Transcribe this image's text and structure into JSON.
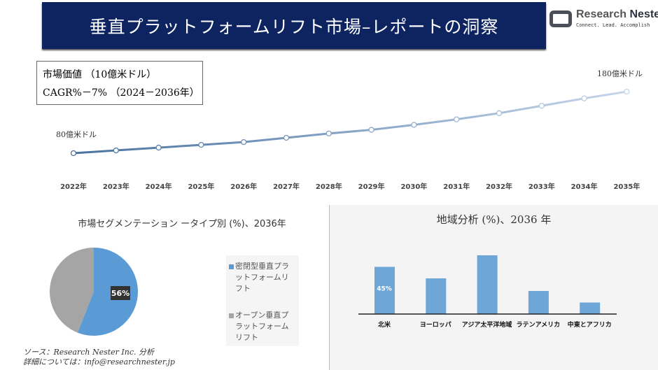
{
  "header": {
    "title": "垂直プラットフォームリフト市場–レポートの洞察"
  },
  "logo": {
    "name_light": "Research",
    "name_bold": "Nester",
    "tagline": "Connect. Lead. Accomplish"
  },
  "info_box": {
    "line1": "市場価値 （10億米ドル）",
    "line2": "CAGR%－7% （2024－2036年）"
  },
  "colors": {
    "banner": "#0d2461",
    "line_start": "#4a72a0",
    "line_end": "#c5d6ea",
    "pie_blue": "#5b9bd5",
    "pie_gray": "#a5a5a5",
    "bar": "#6fa6d8"
  },
  "chart_data": [
    {
      "type": "line",
      "categories": [
        "2022年",
        "2023年",
        "2024年",
        "2025年",
        "2026年",
        "2027年",
        "2028年",
        "2029年",
        "2030年",
        "2031年",
        "2032年",
        "2033年",
        "2034年",
        "2035年"
      ],
      "values": [
        8.0,
        8.45,
        8.9,
        9.35,
        9.8,
        10.5,
        11.2,
        11.8,
        12.6,
        13.5,
        14.5,
        15.7,
        16.9,
        18.0
      ],
      "annotations": {
        "start": "80億米ドル",
        "end": "180億米ドル"
      }
    },
    {
      "type": "pie",
      "title": "市場セグメンテーション ータイプ別 (%)、2036年",
      "slices": [
        {
          "name": "密閉型垂直プラットフォームリフト",
          "value": 56,
          "label": "56%"
        },
        {
          "name": "オープン垂直プラットフォームリフト",
          "value": 44
        }
      ]
    },
    {
      "type": "bar",
      "title": "地域分析 (%)、2036 年",
      "categories": [
        "北米",
        "ヨーロッパ",
        "アジア太平洋地域",
        "ラテンアメリカ",
        "中東とアフリカ"
      ],
      "values": [
        45,
        34,
        56,
        22,
        11
      ],
      "data_labels": [
        "45%",
        "",
        "",
        "",
        ""
      ]
    }
  ],
  "source": {
    "line1": "ソース：Research Nester Inc. 分析",
    "line2": "詳細については：info@researchnester.jp"
  }
}
